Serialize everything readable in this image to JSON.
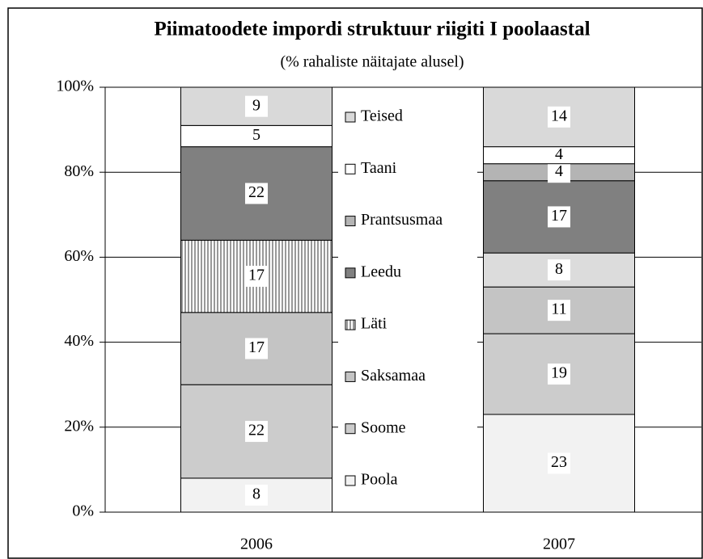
{
  "chart_data": {
    "type": "stacked_bar",
    "title": "Piimatoodete impordi struktuur riigiti I poolaastal",
    "subtitle": "(% rahaliste näitajate alusel)",
    "categories": [
      "2006",
      "2007"
    ],
    "series": [
      {
        "name": "Poola",
        "color": "#f2f2f2",
        "values": [
          8,
          23
        ]
      },
      {
        "name": "Soome",
        "color": "#cccccc",
        "values": [
          22,
          19
        ]
      },
      {
        "name": "Saksamaa",
        "color": "#c4c4c4",
        "values": [
          17,
          11
        ]
      },
      {
        "name": "Läti",
        "color": "#dcdcdc",
        "values": [
          17,
          8
        ]
      },
      {
        "name": "Leedu",
        "color": "#808080",
        "values": [
          22,
          17
        ]
      },
      {
        "name": "Prantsusmaa",
        "color": "#b4b4b4",
        "values": [
          null,
          4
        ]
      },
      {
        "name": "Taani",
        "color": "#ffffff",
        "values": [
          5,
          4
        ]
      },
      {
        "name": "Teised",
        "color": "#d9d9d9",
        "values": [
          9,
          14
        ]
      }
    ],
    "ylim": [
      0,
      100
    ],
    "yticks": [
      {
        "value": 0,
        "label": "0%"
      },
      {
        "value": 20,
        "label": "20%"
      },
      {
        "value": 40,
        "label": "40%"
      },
      {
        "value": 60,
        "label": "60%"
      },
      {
        "value": 80,
        "label": "80%"
      },
      {
        "value": 100,
        "label": "100%"
      }
    ],
    "grid": true
  }
}
